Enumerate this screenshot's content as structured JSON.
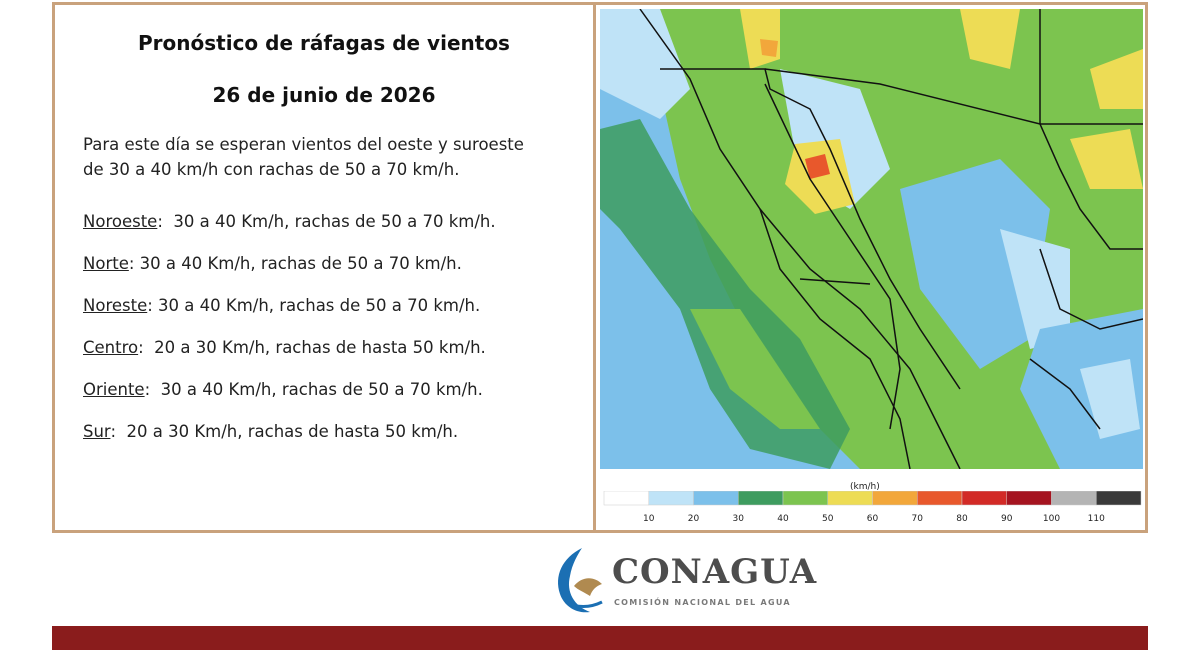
{
  "header": {
    "title": "Pronóstico de ráfagas de vientos",
    "date": "26 de junio de 2026"
  },
  "intro": [
    "Para este día se esperan vientos del oeste y suroeste",
    "de 30 a 40 km/h con rachas de 50 a 70 km/h."
  ],
  "regions": [
    {
      "name": "Noroeste",
      "detail": ":  30 a 40 Km/h, rachas de 50 a 70 km/h."
    },
    {
      "name": "Norte",
      "detail": ": 30 a 40 Km/h, rachas de 50 a 70 km/h."
    },
    {
      "name": "Noreste",
      "detail": ": 30 a 40 Km/h, rachas de 50 a 70 km/h."
    },
    {
      "name": "Centro",
      "detail": ":  20 a 30 Km/h, rachas de hasta 50 km/h."
    },
    {
      "name": "Oriente",
      "detail": ":  30 a 40 Km/h, rachas de 50 a 70 km/h."
    },
    {
      "name": "Sur",
      "detail": ":  20 a 30 Km/h, rachas de hasta 50 km/h."
    }
  ],
  "legend": {
    "unit": "(km/h)",
    "ticks": [
      10,
      20,
      30,
      40,
      50,
      60,
      70,
      80,
      90,
      100,
      110
    ],
    "colors": [
      "#ffffff",
      "#bfe3f7",
      "#7cc0ea",
      "#3e9c5f",
      "#7cc44f",
      "#eddc55",
      "#f2a73b",
      "#e8582c",
      "#d22a26",
      "#a51420",
      "#b4b4b4",
      "#3a3a3a"
    ]
  },
  "logo": {
    "name": "CONAGUA",
    "subtitle": "COMISIÓN NACIONAL DEL AGUA"
  }
}
